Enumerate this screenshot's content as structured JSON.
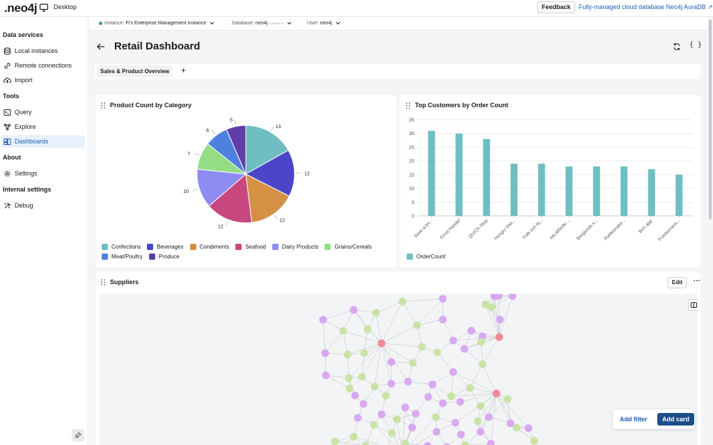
{
  "topbar": {
    "logo": ".neo4j",
    "app_name": "Desktop",
    "feedback_label": "Feedback",
    "aura_link": "Fully-managed cloud database Neo4j AuraDB ↗"
  },
  "sidebar": {
    "sections": [
      {
        "title": "Data services",
        "items": [
          {
            "label": "Local instances",
            "icon": "database-icon"
          },
          {
            "label": "Remote connections",
            "icon": "link-icon"
          },
          {
            "label": "Import",
            "icon": "cloud-upload-icon"
          }
        ]
      },
      {
        "title": "Tools",
        "items": [
          {
            "label": "Query",
            "icon": "terminal-icon"
          },
          {
            "label": "Explore",
            "icon": "explore-icon"
          },
          {
            "label": "Dashboards",
            "icon": "dashboard-icon",
            "active": true
          }
        ]
      },
      {
        "title": "About",
        "items": [
          {
            "label": "Settings",
            "icon": "gear-icon"
          }
        ]
      },
      {
        "title": "Internal settings",
        "items": [
          {
            "label": "Debug",
            "icon": "wrench-icon"
          }
        ]
      }
    ]
  },
  "connection": {
    "instance_label": "Instance:",
    "instance_value": "Fi's Enterprise Management Instance",
    "database_label": "Database:",
    "database_value": "neo4j",
    "database_tag": "CYPHER 5",
    "user_label": "User:",
    "user_value": "neo4j"
  },
  "dashboard": {
    "title": "Retail Dashboard",
    "tabs": [
      "Sales & Product Overview"
    ],
    "add_tab": "+"
  },
  "cards": {
    "pie_title": "Product Count by Category",
    "bar_title": "Top Customers by Order Count",
    "graph_title": "Suppliers",
    "edit_label": "Edit",
    "more_label": "···",
    "add_filter": "Add filter",
    "add_card": "Add card"
  },
  "colors": {
    "accent": "#1f5db5",
    "primary_button": "#1d4e89",
    "bar": "#6fbfc2",
    "node_supplier": "#d8a8f0",
    "node_product": "#c9e3a5",
    "node_hub": "#f08a9a"
  },
  "chart_data": [
    {
      "type": "pie",
      "title": "Product Count by Category",
      "categories": [
        "Confections",
        "Beverages",
        "Condiments",
        "Seafood",
        "Dairy Products",
        "Grains/Cereals",
        "Meat/Poultry",
        "Produce"
      ],
      "values": [
        13,
        12,
        12,
        12,
        10,
        7,
        6,
        5
      ],
      "colors": [
        "#6fbfc2",
        "#4b46c8",
        "#d69044",
        "#c9477f",
        "#8e8cf0",
        "#94dd84",
        "#4f7fe0",
        "#5e3fa8"
      ],
      "legend": "bottom"
    },
    {
      "type": "bar",
      "title": "Top Customers by Order Count",
      "categories": [
        "Save-a-lot...",
        "Ernst Handel",
        "QUICK-Stop",
        "Hungry Owl...",
        "Folk och fä...",
        "HILARION-...",
        "Berglunds s...",
        "Rattlesnake...",
        "Bon app'",
        "Frankenvers..."
      ],
      "series": [
        {
          "name": "OrderCount",
          "values": [
            31,
            30,
            28,
            19,
            19,
            18,
            18,
            18,
            17,
            15
          ]
        }
      ],
      "ylim": [
        0,
        35
      ],
      "yticks": [
        0,
        5,
        10,
        15,
        20,
        25,
        30,
        35
      ],
      "grid": true,
      "legend": "bottom-left"
    }
  ]
}
